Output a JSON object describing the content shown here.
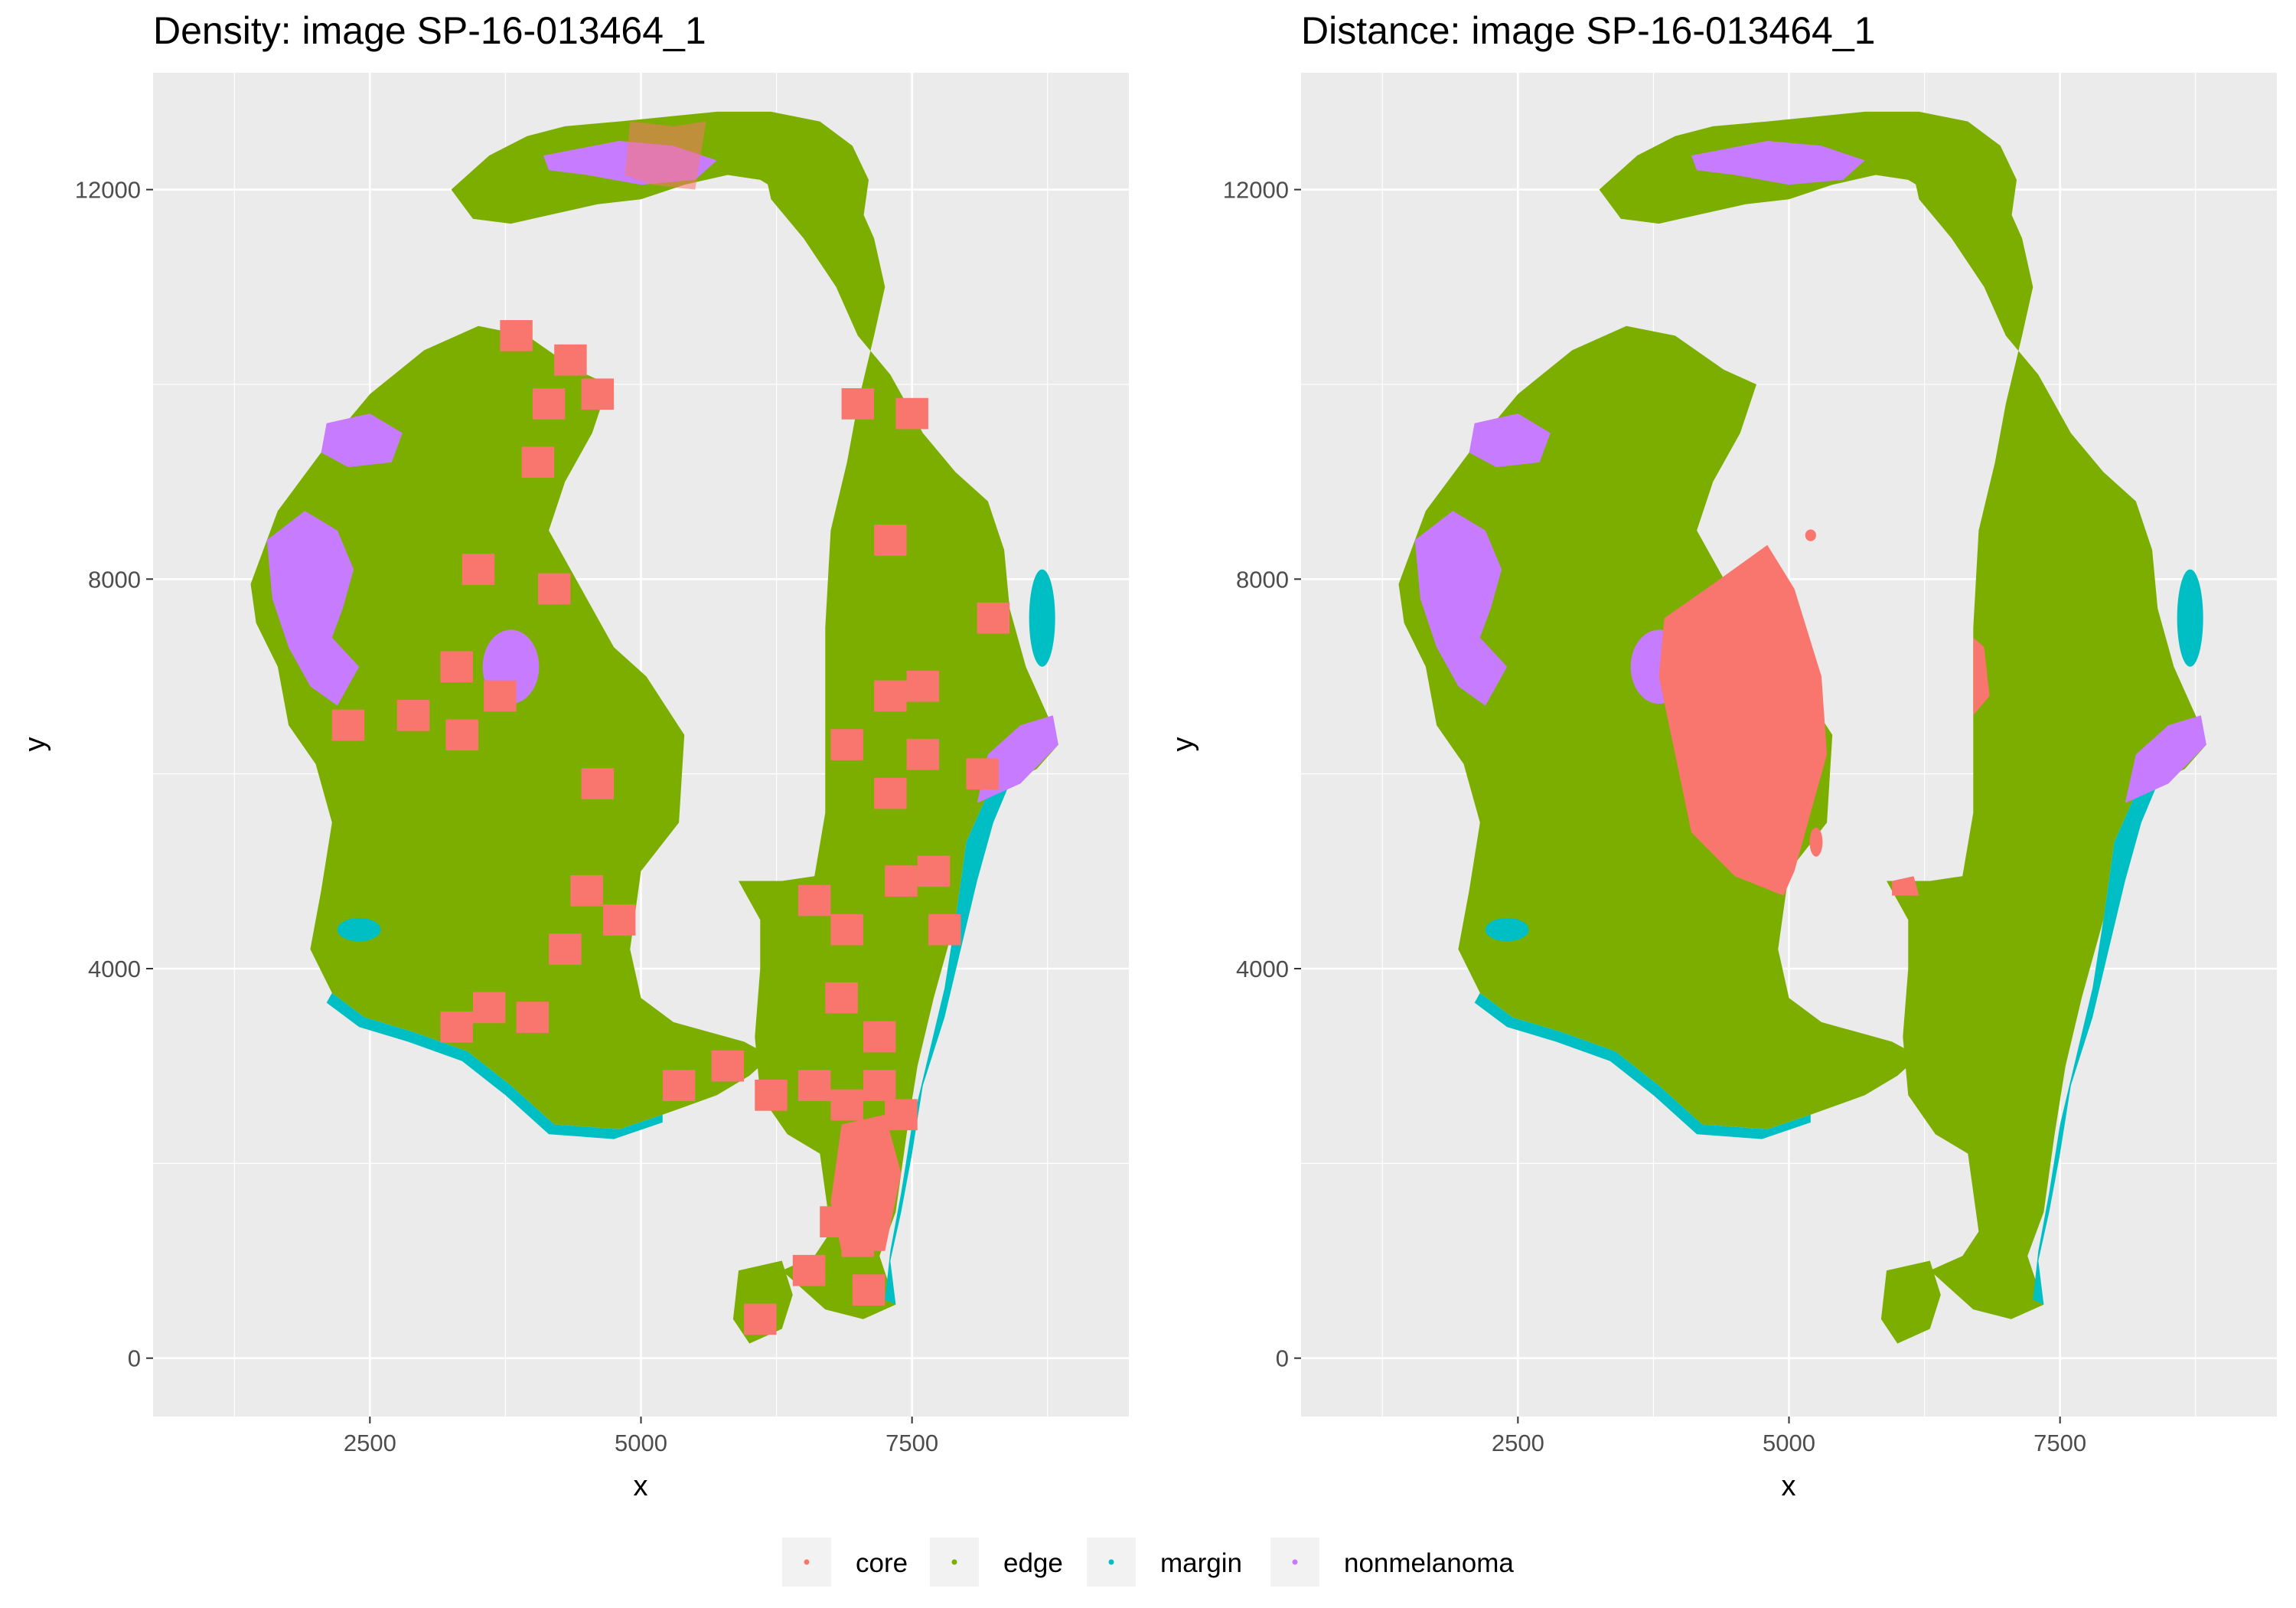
{
  "chart_data": [
    {
      "type": "scatter",
      "title": "Density: image SP-16-013464_1",
      "xlabel": "x",
      "ylabel": "y",
      "xlim": [
        500,
        9500
      ],
      "ylim": [
        -600,
        13200
      ],
      "xticks": [
        "2500",
        "5000",
        "7500"
      ],
      "yticks": [
        "0",
        "4000",
        "8000",
        "12000"
      ],
      "grid": true,
      "panel": "left",
      "series": [
        {
          "name": "core",
          "color": "#F8766D"
        },
        {
          "name": "edge",
          "color": "#7CAE00"
        },
        {
          "name": "margin",
          "color": "#00BFC4"
        },
        {
          "name": "nonmelanoma",
          "color": "#C77CFF"
        }
      ]
    },
    {
      "type": "scatter",
      "title": "Distance: image SP-16-013464_1",
      "xlabel": "x",
      "ylabel": "y",
      "xlim": [
        500,
        9500
      ],
      "ylim": [
        -600,
        13200
      ],
      "xticks": [
        "2500",
        "5000",
        "7500"
      ],
      "yticks": [
        "0",
        "4000",
        "8000",
        "12000"
      ],
      "grid": true,
      "panel": "right",
      "series": [
        {
          "name": "core",
          "color": "#F8766D"
        },
        {
          "name": "edge",
          "color": "#7CAE00"
        },
        {
          "name": "margin",
          "color": "#00BFC4"
        },
        {
          "name": "nonmelanoma",
          "color": "#C77CFF"
        }
      ]
    }
  ],
  "legend": {
    "position": "bottom",
    "items": [
      {
        "label": "core",
        "color": "#F8766D"
      },
      {
        "label": "edge",
        "color": "#7CAE00"
      },
      {
        "label": "margin",
        "color": "#00BFC4"
      },
      {
        "label": "nonmelanoma",
        "color": "#C77CFF"
      }
    ]
  }
}
